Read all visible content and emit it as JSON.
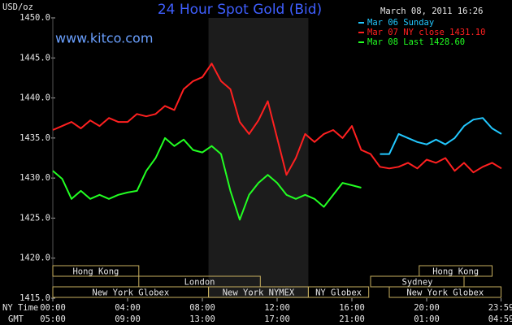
{
  "chart_data": {
    "type": "line",
    "title": "24 Hour Spot Gold (Bid)",
    "subtitle": "www.kitco.com",
    "timestamp": "March 08, 2011 16:26",
    "y_label": "USD/oz",
    "x_label": "NY Time",
    "x2_label": "GMT",
    "x": [
      0,
      0.5,
      1,
      1.5,
      2,
      2.5,
      3,
      3.5,
      4,
      4.5,
      5,
      5.5,
      6,
      6.5,
      7,
      7.5,
      8,
      8.5,
      9,
      9.5,
      10,
      10.5,
      11,
      11.5,
      12,
      12.5,
      13,
      13.5,
      14,
      14.5,
      15,
      15.5,
      16,
      16.5,
      17,
      17.5,
      18,
      18.5,
      19,
      19.5,
      20,
      20.5,
      21,
      21.5,
      22,
      22.5,
      23,
      23.5,
      24
    ],
    "series": [
      {
        "name": "Mar 06 Sunday",
        "color": "#22c8ff",
        "values": [
          null,
          null,
          null,
          null,
          null,
          null,
          null,
          null,
          null,
          null,
          null,
          null,
          null,
          null,
          null,
          null,
          null,
          null,
          null,
          null,
          null,
          null,
          null,
          null,
          null,
          null,
          null,
          null,
          null,
          null,
          null,
          null,
          null,
          null,
          null,
          1433.0,
          1433.0,
          1435.5,
          1435.0,
          1434.5,
          1434.2,
          1434.8,
          1434.2,
          1435.0,
          1436.5,
          1437.3,
          1437.5,
          1436.2,
          1435.5
        ]
      },
      {
        "name": "Mar 07 NY close 1431.10",
        "color": "#ff2020",
        "values": [
          1436.0,
          1436.5,
          1437.0,
          1436.2,
          1437.2,
          1436.5,
          1437.5,
          1437.0,
          1437.0,
          1438.0,
          1437.7,
          1438.0,
          1439.0,
          1438.5,
          1441.1,
          1442.1,
          1442.6,
          1444.3,
          1442.1,
          1441.1,
          1437.0,
          1435.5,
          1437.2,
          1439.6,
          1435.0,
          1430.4,
          1432.5,
          1435.5,
          1434.5,
          1435.5,
          1436.0,
          1435.0,
          1436.5,
          1433.5,
          1433.0,
          1431.4,
          1431.2,
          1431.4,
          1431.9,
          1431.2,
          1432.3,
          1431.9,
          1432.5,
          1430.9,
          1431.9,
          1430.7,
          1431.4,
          1431.9,
          1431.2
        ]
      },
      {
        "name": "Mar 08 Last 1428.60",
        "color": "#22ff22",
        "values": [
          1430.9,
          1429.9,
          1427.4,
          1428.4,
          1427.4,
          1427.9,
          1427.4,
          1427.9,
          1428.2,
          1428.4,
          1430.9,
          1432.5,
          1435.0,
          1434.0,
          1434.8,
          1433.5,
          1433.2,
          1434.0,
          1433.0,
          1428.4,
          1424.8,
          1427.9,
          1429.4,
          1430.4,
          1429.4,
          1427.9,
          1427.4,
          1427.9,
          1427.4,
          1426.4,
          1427.9,
          1429.4,
          1429.1,
          1428.8,
          null,
          null,
          null,
          null,
          null,
          null,
          null,
          null,
          null,
          null,
          null,
          null,
          null,
          null,
          null
        ]
      }
    ],
    "xlim": [
      0,
      24
    ],
    "xticks": [
      {
        "value": 0,
        "label": "00:00"
      },
      {
        "value": 4,
        "label": "04:00"
      },
      {
        "value": 8,
        "label": "08:00"
      },
      {
        "value": 12,
        "label": "12:00"
      },
      {
        "value": 16,
        "label": "16:00"
      },
      {
        "value": 20,
        "label": "20:00"
      },
      {
        "value": 23.98,
        "label": "23:59"
      }
    ],
    "x2ticks": [
      {
        "value": 0,
        "label": "05:00"
      },
      {
        "value": 4,
        "label": "09:00"
      },
      {
        "value": 8,
        "label": "13:00"
      },
      {
        "value": 12,
        "label": "17:00"
      },
      {
        "value": 16,
        "label": "21:00"
      },
      {
        "value": 20,
        "label": "01:00"
      },
      {
        "value": 23.98,
        "label": "04:59"
      }
    ],
    "ylim": [
      1415,
      1450
    ],
    "yticks": [
      {
        "value": 1415,
        "label": "1415.0"
      },
      {
        "value": 1420,
        "label": "1420.0"
      },
      {
        "value": 1425,
        "label": "1425.0"
      },
      {
        "value": 1430,
        "label": "1430.0"
      },
      {
        "value": 1435,
        "label": "1435.0"
      },
      {
        "value": 1440,
        "label": "1440.0"
      },
      {
        "value": 1445,
        "label": "1445.0"
      },
      {
        "value": 1450,
        "label": "1450.0"
      }
    ],
    "shaded": [
      8.33,
      13.67
    ],
    "sessions": [
      [
        {
          "name": "Hong Kong",
          "start": 0,
          "end": 4.6
        },
        {
          "name": "Hong Kong",
          "start": 19.6,
          "end": 23.5
        }
      ],
      [
        {
          "name": "London",
          "start": 4.6,
          "end": 11.1
        },
        {
          "name": "Sydney",
          "start": 17,
          "end": 22
        }
      ],
      [
        {
          "name": "New York Globex",
          "start": 0,
          "end": 8.33
        },
        {
          "name": "New York NYMEX",
          "start": 8.33,
          "end": 13.67
        },
        {
          "name": "NY Globex",
          "start": 13.67,
          "end": 16.9
        },
        {
          "name": "New York Globex",
          "start": 18,
          "end": 23.98
        }
      ]
    ]
  }
}
